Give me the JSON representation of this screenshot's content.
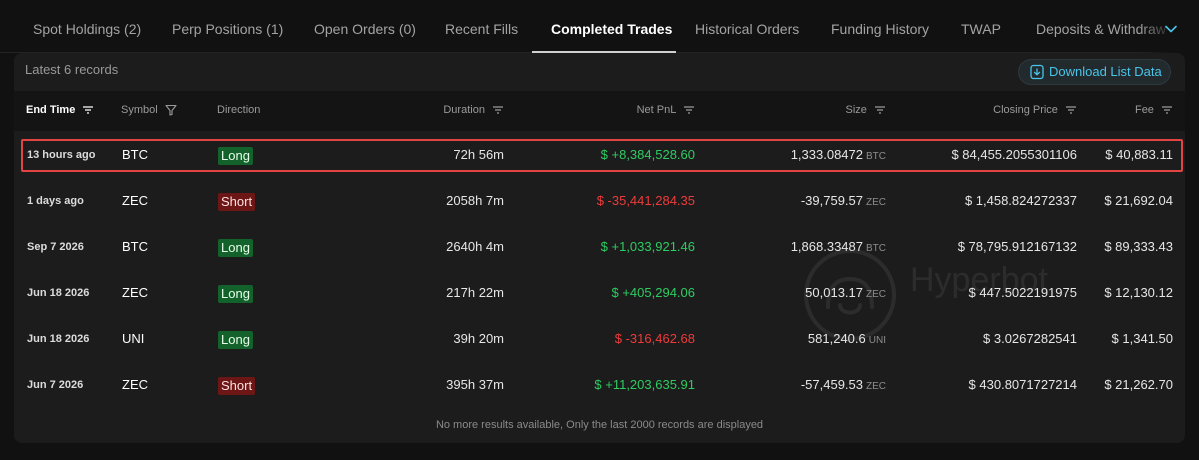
{
  "tabs": [
    {
      "label": "Spot Holdings (2)",
      "active": false
    },
    {
      "label": "Perp Positions (1)",
      "active": false
    },
    {
      "label": "Open Orders (0)",
      "active": false
    },
    {
      "label": "Recent Fills",
      "active": false
    },
    {
      "label": "Completed Trades",
      "active": true
    },
    {
      "label": "Historical Orders",
      "active": false
    },
    {
      "label": "Funding History",
      "active": false
    },
    {
      "label": "TWAP",
      "active": false
    },
    {
      "label": "Deposits & Withdraw",
      "active": false
    }
  ],
  "toolbar": {
    "records_label": "Latest 6 records",
    "download_label": "Download List Data"
  },
  "columns": {
    "end_time": "End Time",
    "symbol": "Symbol",
    "direction": "Direction",
    "duration": "Duration",
    "net_pnl": "Net PnL",
    "size": "Size",
    "closing_price": "Closing Price",
    "fee": "Fee"
  },
  "rows": [
    {
      "end_time": "13 hours ago",
      "symbol": "BTC",
      "direction": "Long",
      "duration": "72h 56m",
      "net_pnl": "$ +8,384,528.60",
      "pnl_sign": "pos",
      "size": "1,333.08472",
      "size_unit": "BTC",
      "closing_price": "$ 84,455.2055301106",
      "fee": "$ 40,883.11",
      "highlighted": true
    },
    {
      "end_time": "1 days ago",
      "symbol": "ZEC",
      "direction": "Short",
      "duration": "2058h 7m",
      "net_pnl": "$ -35,441,284.35",
      "pnl_sign": "neg",
      "size": "-39,759.57",
      "size_unit": "ZEC",
      "closing_price": "$ 1,458.824272337",
      "fee": "$ 21,692.04",
      "highlighted": false
    },
    {
      "end_time": "Sep 7 2026",
      "symbol": "BTC",
      "direction": "Long",
      "duration": "2640h 4m",
      "net_pnl": "$ +1,033,921.46",
      "pnl_sign": "pos",
      "size": "1,868.33487",
      "size_unit": "BTC",
      "closing_price": "$ 78,795.912167132",
      "fee": "$ 89,333.43",
      "highlighted": false
    },
    {
      "end_time": "Jun 18 2026",
      "symbol": "ZEC",
      "direction": "Long",
      "duration": "217h 22m",
      "net_pnl": "$ +405,294.06",
      "pnl_sign": "pos",
      "size": "50,013.17",
      "size_unit": "ZEC",
      "closing_price": "$ 447.5022191975",
      "fee": "$ 12,130.12",
      "highlighted": false
    },
    {
      "end_time": "Jun 18 2026",
      "symbol": "UNI",
      "direction": "Long",
      "duration": "39h 20m",
      "net_pnl": "$ -316,462.68",
      "pnl_sign": "neg",
      "size": "581,240.6",
      "size_unit": "UNI",
      "closing_price": "$ 3.0267282541",
      "fee": "$ 1,341.50",
      "highlighted": false
    },
    {
      "end_time": "Jun 7 2026",
      "symbol": "ZEC",
      "direction": "Short",
      "duration": "395h 37m",
      "net_pnl": "$ +11,203,635.91",
      "pnl_sign": "pos",
      "size": "-57,459.53",
      "size_unit": "ZEC",
      "closing_price": "$ 430.8071727214",
      "fee": "$ 21,262.70",
      "highlighted": false
    }
  ],
  "footer": {
    "note": "No more results available, Only the last 2000 records are displayed"
  },
  "watermark": {
    "text": "Hyperbot"
  },
  "colors": {
    "positive": "#2ecc62",
    "negative": "#ee3b3b",
    "accent": "#48c5e9",
    "highlight_border": "#e24444"
  }
}
